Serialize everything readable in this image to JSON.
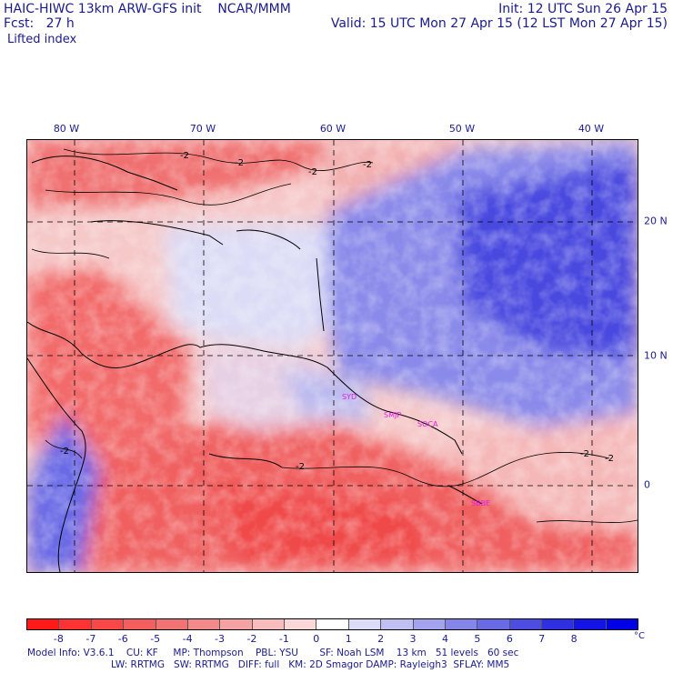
{
  "header": {
    "model_title": "HAIC-HIWC 13km ARW-GFS init",
    "org": "NCAR/MMM",
    "init": "Init: 12 UTC Sun 26 Apr 15",
    "fcst_label": "Fcst:",
    "fcst_value": "27 h",
    "valid": "Valid: 15 UTC Mon 27 Apr 15 (12 LST Mon 27 Apr 15)",
    "field": "Lifted index"
  },
  "map": {
    "lon_labels": [
      "80 W",
      "70 W",
      "60 W",
      "50 W",
      "40 W"
    ],
    "lat_labels": [
      "20 N",
      "10 N",
      "0"
    ],
    "contour_label": "-2",
    "sites": [
      "SYD",
      "SMJP",
      "SOCA",
      "SBBE"
    ],
    "site_color": "#e020e0"
  },
  "colorbar": {
    "levels": [
      "-8",
      "-7",
      "-6",
      "-5",
      "-4",
      "-3",
      "-2",
      "-1",
      "0",
      "1",
      "2",
      "3",
      "4",
      "5",
      "6",
      "7",
      "8"
    ],
    "unit": "°C",
    "colors": [
      "#ff1a1a",
      "#ff3333",
      "#fa4848",
      "#f55e5e",
      "#f27373",
      "#f28a8a",
      "#f4a2a2",
      "#f7bcbc",
      "#fad8d8",
      "#ffffff",
      "#dcdcf8",
      "#c0c0f3",
      "#a3a3ee",
      "#8686ea",
      "#6a6ae7",
      "#4d4de4",
      "#3030e3",
      "#1414e6",
      "#0000e6"
    ]
  },
  "footer": {
    "line1": [
      "Model Info: V3.6.1",
      "CU: KF",
      "MP: Thompson",
      "PBL: YSU",
      "SF: Noah LSM",
      "13 km",
      "51 levels",
      "60 sec"
    ],
    "line2": [
      "LW: RRTMG",
      "SW: RRTMG",
      "DIFF: full",
      "KM: 2D Smagor",
      "DAMP: Rayleigh3",
      "SFLAY: MM5"
    ]
  }
}
